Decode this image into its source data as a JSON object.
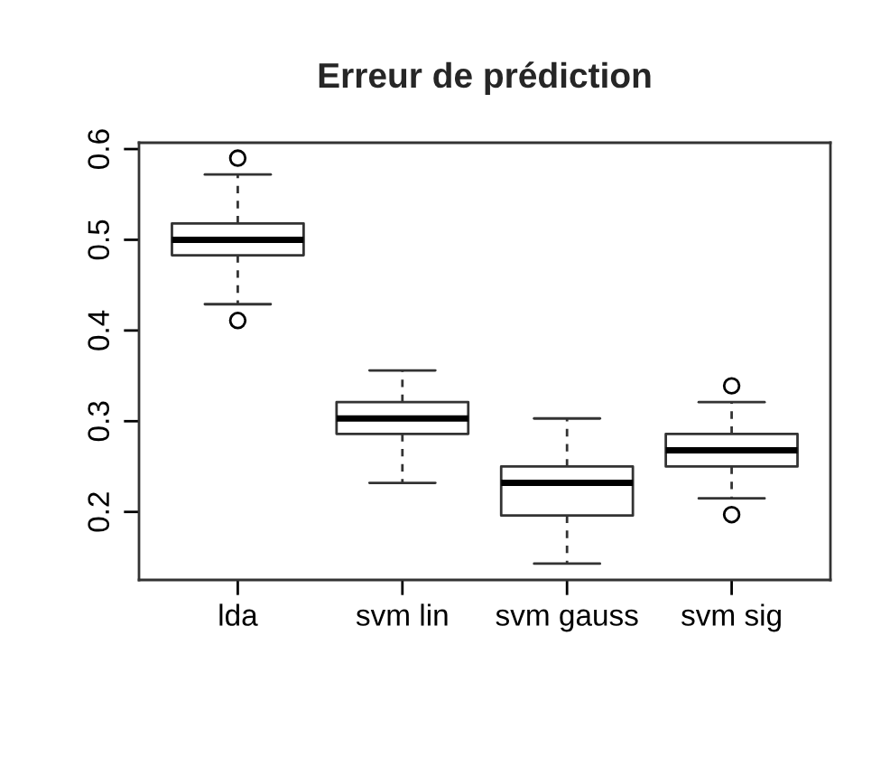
{
  "chart_data": {
    "type": "box",
    "title": "Erreur de prédiction",
    "categories": [
      "lda",
      "svm lin",
      "svm gauss",
      "svm sig"
    ],
    "boxes": [
      {
        "low": 0.429,
        "q1": 0.483,
        "median": 0.5,
        "q3": 0.518,
        "high": 0.572,
        "outliers": [
          0.59,
          0.411
        ]
      },
      {
        "low": 0.232,
        "q1": 0.286,
        "median": 0.303,
        "q3": 0.321,
        "high": 0.356
      },
      {
        "low": 0.143,
        "q1": 0.196,
        "median": 0.232,
        "q3": 0.25,
        "high": 0.303
      },
      {
        "low": 0.215,
        "q1": 0.25,
        "median": 0.268,
        "q3": 0.286,
        "high": 0.321,
        "outliers": [
          0.339,
          0.197
        ]
      }
    ],
    "ylim": [
      0.125,
      0.607
    ],
    "yticks": [
      0.2,
      0.3,
      0.4,
      0.5,
      0.6
    ],
    "grid": false,
    "legend": false
  }
}
